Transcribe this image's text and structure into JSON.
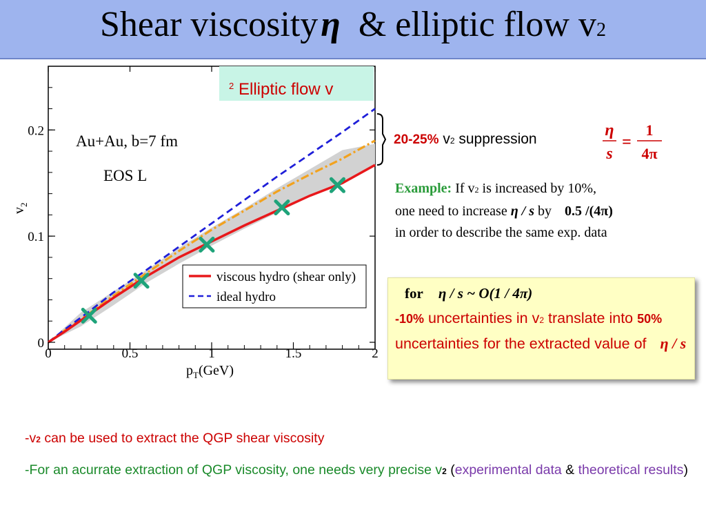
{
  "slide": {
    "title_main": "Shear viscosity",
    "title_eta": "η",
    "title_rest": "& elliptic flow v",
    "title_sub": "2"
  },
  "legend_box": {
    "label": "Elliptic flow v",
    "sub": "2"
  },
  "suppression": {
    "percent": "20-25%",
    "v": "v",
    "sub": "2",
    "text": "suppression"
  },
  "formula": {
    "num": "η",
    "den": "s",
    "eq": "=",
    "rhs_num": "1",
    "rhs_den": "4π"
  },
  "example": {
    "label": "Example:",
    "t1": "If v",
    "sub": "2",
    "t2": "is increased by 10%,",
    "t3": "one need to increase",
    "eta_s": "η / s",
    "by": "by",
    "amount": "0.5 /(4π)",
    "t4": "in order to describe the same exp. data"
  },
  "uncertainty_box": {
    "for": "for",
    "order": "η / s ~ O(1 / 4π)",
    "pct1": "-10%",
    "t1": "uncertainties in v",
    "sub": "2",
    "t2": "translate into",
    "pct2": "50%",
    "t3": "uncertainties for the extracted value of",
    "eta_s": "η / s"
  },
  "notes": {
    "n1_dash": "-v",
    "n1_sub": "2",
    "n1_text": "can be used to extract the QGP shear viscosity",
    "n2_text": "-For an acurrate extraction of QGP viscosity, one needs very precise v",
    "n2_sub": "2",
    "n2_open": "(",
    "n2_exp": "experimental data",
    "n2_amp": "&",
    "n2_theo": "theoretical results",
    "n2_close": ")"
  },
  "colors": {
    "red": "#e8181b",
    "blue": "#1f1fd9",
    "orange": "#f2a21e",
    "band": "#d2d2d2",
    "marker": "#1fa37a"
  },
  "chart_data": {
    "type": "line",
    "xlabel": "p",
    "xlabel_sub": "T",
    "xlabel_unit": "(GeV)",
    "ylabel": "v",
    "ylabel_sub": "2",
    "xlim": [
      0,
      2
    ],
    "ylim": [
      0,
      0.26
    ],
    "x_ticks": [
      {
        "v": 0,
        "label": "0"
      },
      {
        "v": 0.5,
        "label": "0.5"
      },
      {
        "v": 1,
        "label": "1"
      },
      {
        "v": 1.5,
        "label": "1.5"
      },
      {
        "v": 2,
        "label": "2"
      }
    ],
    "y_ticks": [
      {
        "v": 0,
        "label": "0"
      },
      {
        "v": 0.1,
        "label": "0.1"
      },
      {
        "v": 0.2,
        "label": "0.2"
      }
    ],
    "annotations": [
      "Au+Au, b=7 fm",
      "EOS L"
    ],
    "legend": [
      "viscous hydro (shear only)",
      "ideal hydro"
    ],
    "series": [
      {
        "name": "viscous hydro (shear only)",
        "style": "solid",
        "color": "#e8181b",
        "x": [
          0,
          0.1,
          0.25,
          0.4,
          0.6,
          0.8,
          1.0,
          1.2,
          1.4,
          1.6,
          1.8,
          2.0
        ],
        "y": [
          0,
          0.01,
          0.026,
          0.042,
          0.062,
          0.08,
          0.095,
          0.11,
          0.124,
          0.138,
          0.15,
          0.167
        ]
      },
      {
        "name": "ideal hydro",
        "style": "dashed",
        "color": "#1f1fd9",
        "x": [
          0,
          0.1,
          0.25,
          0.4,
          0.6,
          0.8,
          1.0,
          1.2,
          1.4,
          1.6,
          1.8,
          2.0
        ],
        "y": [
          0,
          0.012,
          0.029,
          0.047,
          0.068,
          0.09,
          0.112,
          0.134,
          0.156,
          0.177,
          0.198,
          0.22
        ]
      },
      {
        "style": "dashdot",
        "color": "#f2a21e",
        "x": [
          0,
          0.1,
          0.25,
          0.4,
          0.6,
          0.8,
          1.0,
          1.2,
          1.4,
          1.6,
          1.8,
          2.0
        ],
        "y": [
          0,
          0.011,
          0.027,
          0.044,
          0.065,
          0.086,
          0.106,
          0.124,
          0.142,
          0.158,
          0.173,
          0.19
        ]
      }
    ],
    "band": {
      "x": [
        0,
        0.2,
        0.4,
        0.6,
        0.8,
        1.0,
        1.2,
        1.4,
        1.6,
        1.8,
        2.0
      ],
      "lower": [
        0,
        0.015,
        0.035,
        0.056,
        0.074,
        0.091,
        0.107,
        0.122,
        0.137,
        0.151,
        0.166
      ],
      "upper": [
        0,
        0.028,
        0.048,
        0.068,
        0.089,
        0.108,
        0.126,
        0.145,
        0.163,
        0.181,
        0.187
      ]
    },
    "markers": {
      "x": [
        0.25,
        0.57,
        0.97,
        1.43,
        1.77
      ],
      "y": [
        0.025,
        0.058,
        0.092,
        0.127,
        0.148
      ]
    }
  }
}
